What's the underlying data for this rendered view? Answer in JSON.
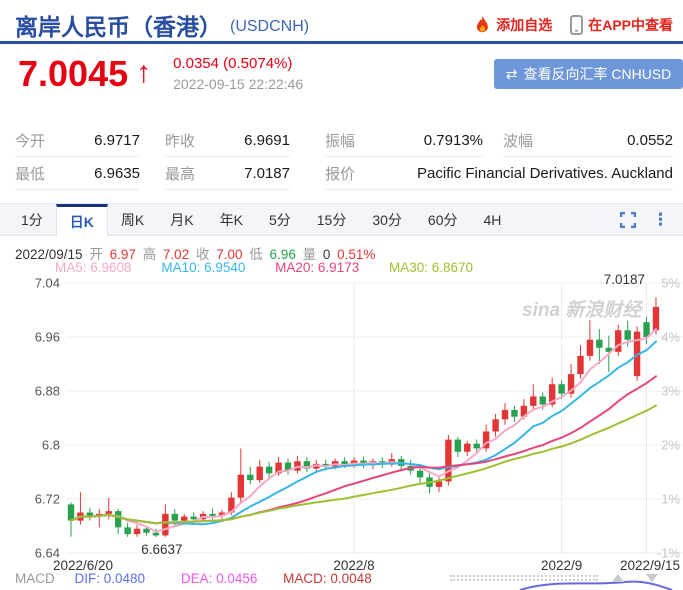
{
  "colors": {
    "title_blue": "#2a4fa2",
    "symbol_blue": "#4166b0",
    "link_red": "#e3241d",
    "price_red": "#e60012",
    "button_blue": "#6d97d9",
    "tab_blue": "#2a5db0",
    "up": "#e23636",
    "down": "#28a24e",
    "dif_blue": "#5b6ef0",
    "dea_magenta": "#ee55ee",
    "macd_red": "#c03a3a"
  },
  "header": {
    "title": "离岸人民币（香港）",
    "symbol": "(USDCNH)",
    "add_watchlist": "添加自选",
    "view_in_app": "在APP中查看"
  },
  "quote": {
    "price": "7.0045",
    "arrow": "↑",
    "change": "0.0354 (0.5074%)",
    "timestamp": "2022-09-15 22:22:46",
    "reverse_icon": "⇄",
    "reverse_button": "查看反向汇率 CNHUSD"
  },
  "stats": {
    "open_label": "今开",
    "open": "6.9717",
    "prev_close_label": "昨收",
    "prev_close": "6.9691",
    "amplitude_label": "振幅",
    "amplitude": "0.7913%",
    "range_label": "波幅",
    "range": "0.0552",
    "low_label": "最低",
    "low": "6.9635",
    "high_label": "最高",
    "high": "7.0187",
    "source_label": "报价",
    "source": "Pacific Financial Derivatives. Auckland"
  },
  "tabs": {
    "items": [
      "1分",
      "日K",
      "周K",
      "月K",
      "年K",
      "5分",
      "15分",
      "30分",
      "60分",
      "4H"
    ],
    "active": "日K"
  },
  "ohlc_bar": {
    "date": "2022/09/15",
    "open_label": "开",
    "open": "6.97",
    "high_label": "高",
    "high": "7.02",
    "close_label": "收",
    "close": "7.00",
    "low_label": "低",
    "low": "6.96",
    "volume_label": "量",
    "volume": "0",
    "change_pct": "0.51%"
  },
  "macd_bar": {
    "name": "MACD",
    "dif": "DIF: 0.0480",
    "dea": "DEA: 0.0456",
    "macd": "MACD: 0.0048"
  },
  "chart_data": {
    "type": "candlestick",
    "title": "USDCNH 日K",
    "watermark": "sina 新浪财经",
    "y_axis_ticks": [
      {
        "label": "7.04",
        "price": 7.04
      },
      {
        "label": "6.96",
        "price": 6.96
      },
      {
        "label": "6.88",
        "price": 6.88
      },
      {
        "label": "6.8",
        "price": 6.8
      },
      {
        "label": "6.72",
        "price": 6.72
      },
      {
        "label": "6.64",
        "price": 6.64
      }
    ],
    "right_axis_ticks": [
      {
        "label": "5%",
        "price": 7.04
      },
      {
        "label": "4%",
        "price": 6.96
      },
      {
        "label": "3%",
        "price": 6.88
      },
      {
        "label": "2%",
        "price": 6.8
      },
      {
        "label": "1%",
        "price": 6.72
      },
      {
        "label": "-1%",
        "price": 6.64
      }
    ],
    "x_ticks": [
      {
        "label": "2022/6/20",
        "day": 0,
        "align": "start",
        "grid": false
      },
      {
        "label": "2022/8",
        "day": 30,
        "align": "middle",
        "grid": true
      },
      {
        "label": "2022/9",
        "day": 52,
        "align": "middle",
        "grid": true
      },
      {
        "label": "2022/9/15",
        "day": 61,
        "align": "end",
        "grid": true
      }
    ],
    "high_annotation": "7.0187",
    "low_annotation": "6.6637",
    "low_annotation_day": 9,
    "ma": [
      {
        "label": "MA5: 6.9608",
        "window": 5,
        "color": "#f7a8c6"
      },
      {
        "label": "MA10: 6.9540",
        "window": 10,
        "color": "#35b8e6"
      },
      {
        "label": "MA20: 6.9173",
        "window": 20,
        "color": "#e8457d"
      },
      {
        "label": "MA30: 6.8670",
        "window": 30,
        "color": "#9fc131"
      }
    ],
    "candles": [
      [
        6.712,
        6.715,
        6.664,
        6.688
      ],
      [
        6.688,
        6.73,
        6.682,
        6.7
      ],
      [
        6.7,
        6.707,
        6.688,
        6.694
      ],
      [
        6.694,
        6.705,
        6.678,
        6.698
      ],
      [
        6.698,
        6.722,
        6.69,
        6.702
      ],
      [
        6.702,
        6.705,
        6.668,
        6.678
      ],
      [
        6.678,
        6.685,
        6.664,
        6.668
      ],
      [
        6.668,
        6.682,
        6.664,
        6.676
      ],
      [
        6.676,
        6.68,
        6.666,
        6.67
      ],
      [
        6.67,
        6.676,
        6.6637,
        6.666
      ],
      [
        6.666,
        6.712,
        6.664,
        6.698
      ],
      [
        6.698,
        6.705,
        6.68,
        6.688
      ],
      [
        6.688,
        6.698,
        6.682,
        6.694
      ],
      [
        6.694,
        6.7,
        6.686,
        6.69
      ],
      [
        6.69,
        6.702,
        6.686,
        6.698
      ],
      [
        6.698,
        6.706,
        6.69,
        6.695
      ],
      [
        6.695,
        6.704,
        6.69,
        6.7
      ],
      [
        6.7,
        6.73,
        6.696,
        6.722
      ],
      [
        6.722,
        6.795,
        6.715,
        6.756
      ],
      [
        6.756,
        6.768,
        6.742,
        6.748
      ],
      [
        6.748,
        6.778,
        6.744,
        6.768
      ],
      [
        6.768,
        6.775,
        6.752,
        6.758
      ],
      [
        6.758,
        6.782,
        6.754,
        6.774
      ],
      [
        6.774,
        6.78,
        6.756,
        6.762
      ],
      [
        6.762,
        6.784,
        6.758,
        6.776
      ],
      [
        6.776,
        6.782,
        6.76,
        6.765
      ],
      [
        6.765,
        6.778,
        6.76,
        6.772
      ],
      [
        6.772,
        6.778,
        6.762,
        6.768
      ],
      [
        6.768,
        6.78,
        6.764,
        6.776
      ],
      [
        6.776,
        6.782,
        6.766,
        6.77
      ],
      [
        6.77,
        6.782,
        6.766,
        6.777
      ],
      [
        6.777,
        6.783,
        6.766,
        6.77
      ],
      [
        6.77,
        6.78,
        6.764,
        6.776
      ],
      [
        6.776,
        6.782,
        6.766,
        6.771
      ],
      [
        6.771,
        6.788,
        6.768,
        6.779
      ],
      [
        6.779,
        6.784,
        6.764,
        6.769
      ],
      [
        6.769,
        6.778,
        6.756,
        6.762
      ],
      [
        6.762,
        6.77,
        6.744,
        6.752
      ],
      [
        6.752,
        6.758,
        6.728,
        6.738
      ],
      [
        6.738,
        6.752,
        6.73,
        6.746
      ],
      [
        6.746,
        6.815,
        6.74,
        6.808
      ],
      [
        6.808,
        6.812,
        6.782,
        6.79
      ],
      [
        6.79,
        6.806,
        6.784,
        6.802
      ],
      [
        6.802,
        6.808,
        6.788,
        6.795
      ],
      [
        6.795,
        6.83,
        6.79,
        6.82
      ],
      [
        6.82,
        6.846,
        6.812,
        6.838
      ],
      [
        6.838,
        6.862,
        6.83,
        6.852
      ],
      [
        6.852,
        6.858,
        6.834,
        6.842
      ],
      [
        6.842,
        6.868,
        6.838,
        6.858
      ],
      [
        6.858,
        6.89,
        6.852,
        6.872
      ],
      [
        6.872,
        6.878,
        6.852,
        6.86
      ],
      [
        6.86,
        6.9,
        6.856,
        6.89
      ],
      [
        6.89,
        6.896,
        6.868,
        6.876
      ],
      [
        6.876,
        6.92,
        6.87,
        6.905
      ],
      [
        6.905,
        6.948,
        6.898,
        6.932
      ],
      [
        6.932,
        6.985,
        6.925,
        6.956
      ],
      [
        6.956,
        6.972,
        6.92,
        6.944
      ],
      [
        6.944,
        6.962,
        6.908,
        6.938
      ],
      [
        6.938,
        6.978,
        6.932,
        6.97
      ],
      [
        6.97,
        6.984,
        6.946,
        6.956
      ],
      [
        6.902,
        6.976,
        6.895,
        6.968
      ],
      [
        6.982,
        6.99,
        6.95,
        6.96
      ],
      [
        6.97,
        7.0187,
        6.9635,
        7.0045
      ]
    ],
    "colors": {
      "up": "#e23636",
      "down": "#28a24e",
      "grid": "#ececec",
      "axis_text": "#555555",
      "percent_text": "#c5c5c5",
      "date_text": "#333333",
      "annotation_text": "#333333",
      "watermark_text": "#cdcdcd"
    }
  }
}
